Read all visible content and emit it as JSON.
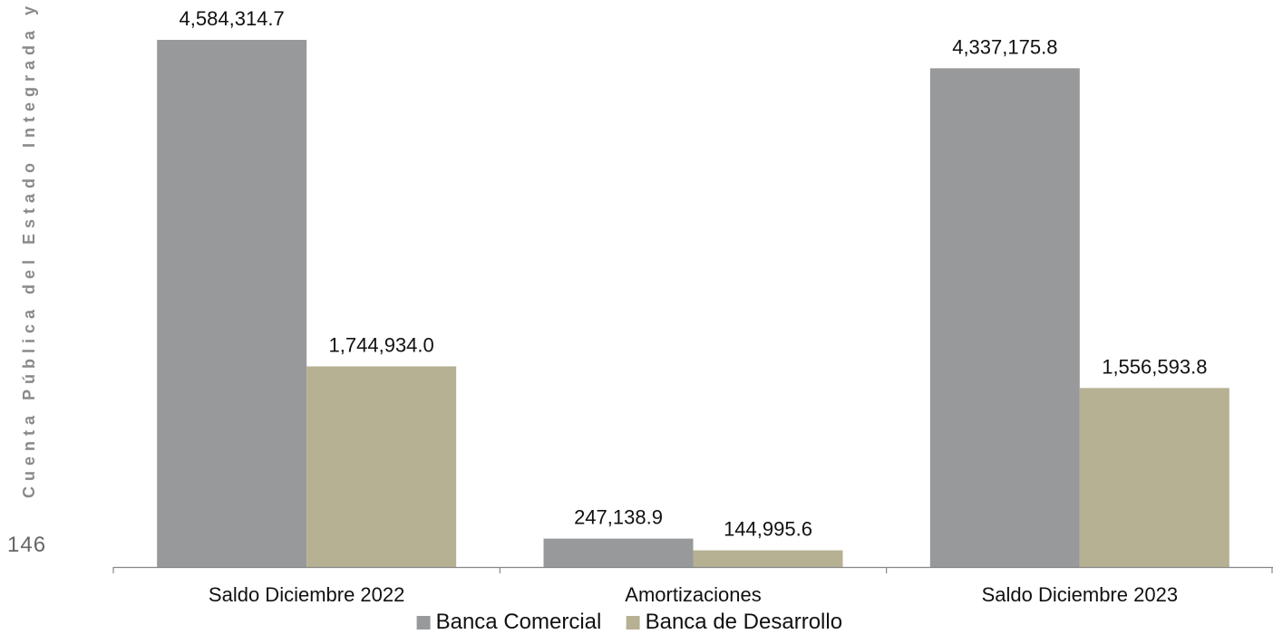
{
  "side_text": "Cuenta Pública del Estado Integrada y Cor",
  "page_number": "146",
  "chart_data": {
    "type": "bar",
    "categories": [
      "Saldo Diciembre 2022",
      "Amortizaciones",
      "Saldo Diciembre 2023"
    ],
    "series": [
      {
        "name": "Banca Comercial",
        "color": "#97999b",
        "values": [
          4584314.7,
          247138.9,
          4337175.8
        ],
        "labels": [
          "4,584,314.7",
          "247,138.9",
          "4,337,175.8"
        ]
      },
      {
        "name": "Banca de Desarrollo",
        "color": "#b6b193",
        "values": [
          1744934.0,
          144995.6,
          1556593.8
        ],
        "labels": [
          "1,744,934.0",
          "144,995.6",
          "1,556,593.8"
        ]
      }
    ],
    "ylim": [
      0,
      4584314.7
    ],
    "grid": false,
    "legend_position": "bottom-center"
  }
}
